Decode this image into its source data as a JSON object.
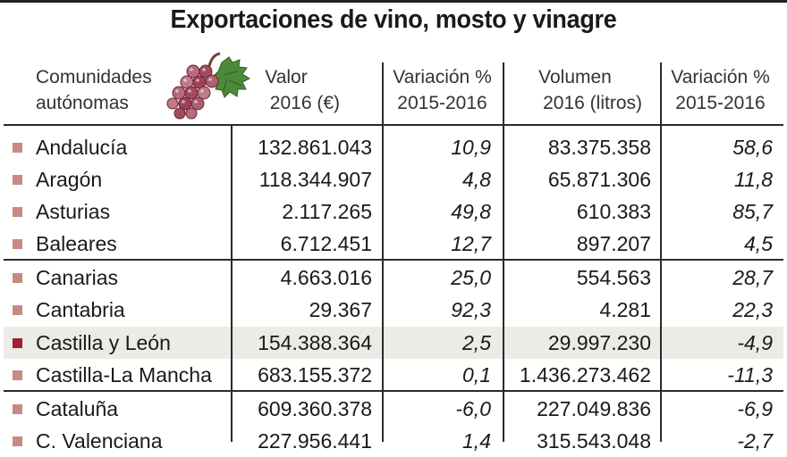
{
  "title": "Exportaciones de vino, mosto y vinagre",
  "headers": {
    "comunidades": [
      "Comunidades",
      "autónomas"
    ],
    "valor": [
      "Valor",
      "2016 (€)"
    ],
    "variacion1": [
      "Variación %",
      "2015-2016"
    ],
    "volumen": [
      "Volumen",
      "2016 (litros)"
    ],
    "variacion2": [
      "Variación %",
      "2015-2016"
    ]
  },
  "rows": [
    {
      "name": "Andalucía",
      "valor": "132.861.043",
      "var_valor": "10,9",
      "volumen": "83.375.358",
      "var_volumen": "58,6"
    },
    {
      "name": "Aragón",
      "valor": "118.344.907",
      "var_valor": "4,8",
      "volumen": "65.871.306",
      "var_volumen": "11,8"
    },
    {
      "name": "Asturias",
      "valor": "2.117.265",
      "var_valor": "49,8",
      "volumen": "610.383",
      "var_volumen": "85,7"
    },
    {
      "name": "Baleares",
      "valor": "6.712.451",
      "var_valor": "12,7",
      "volumen": "897.207",
      "var_volumen": "4,5"
    },
    {
      "name": "Canarias",
      "valor": "4.663.016",
      "var_valor": "25,0",
      "volumen": "554.563",
      "var_volumen": "28,7"
    },
    {
      "name": "Cantabria",
      "valor": "29.367",
      "var_valor": "92,3",
      "volumen": "4.281",
      "var_volumen": "22,3"
    },
    {
      "name": "Castilla y León",
      "valor": "154.388.364",
      "var_valor": "2,5",
      "volumen": "29.997.230",
      "var_volumen": "-4,9",
      "highlight": true
    },
    {
      "name": "Castilla-La Mancha",
      "valor": "683.155.372",
      "var_valor": "0,1",
      "volumen": "1.436.273.462",
      "var_volumen": "-11,3"
    },
    {
      "name": "Cataluña",
      "valor": "609.360.378",
      "var_valor": "-6,0",
      "volumen": "227.049.836",
      "var_volumen": "-6,9"
    },
    {
      "name": "C. Valenciana",
      "valor": "227.956.441",
      "var_valor": "1,4",
      "volumen": "315.543.048",
      "var_volumen": "-2,7"
    }
  ],
  "colors": {
    "row_marker": "#c48b80",
    "highlight_marker": "#a01f33",
    "highlight_background": "#ecebe6"
  },
  "icons": [
    "grapes-icon"
  ]
}
